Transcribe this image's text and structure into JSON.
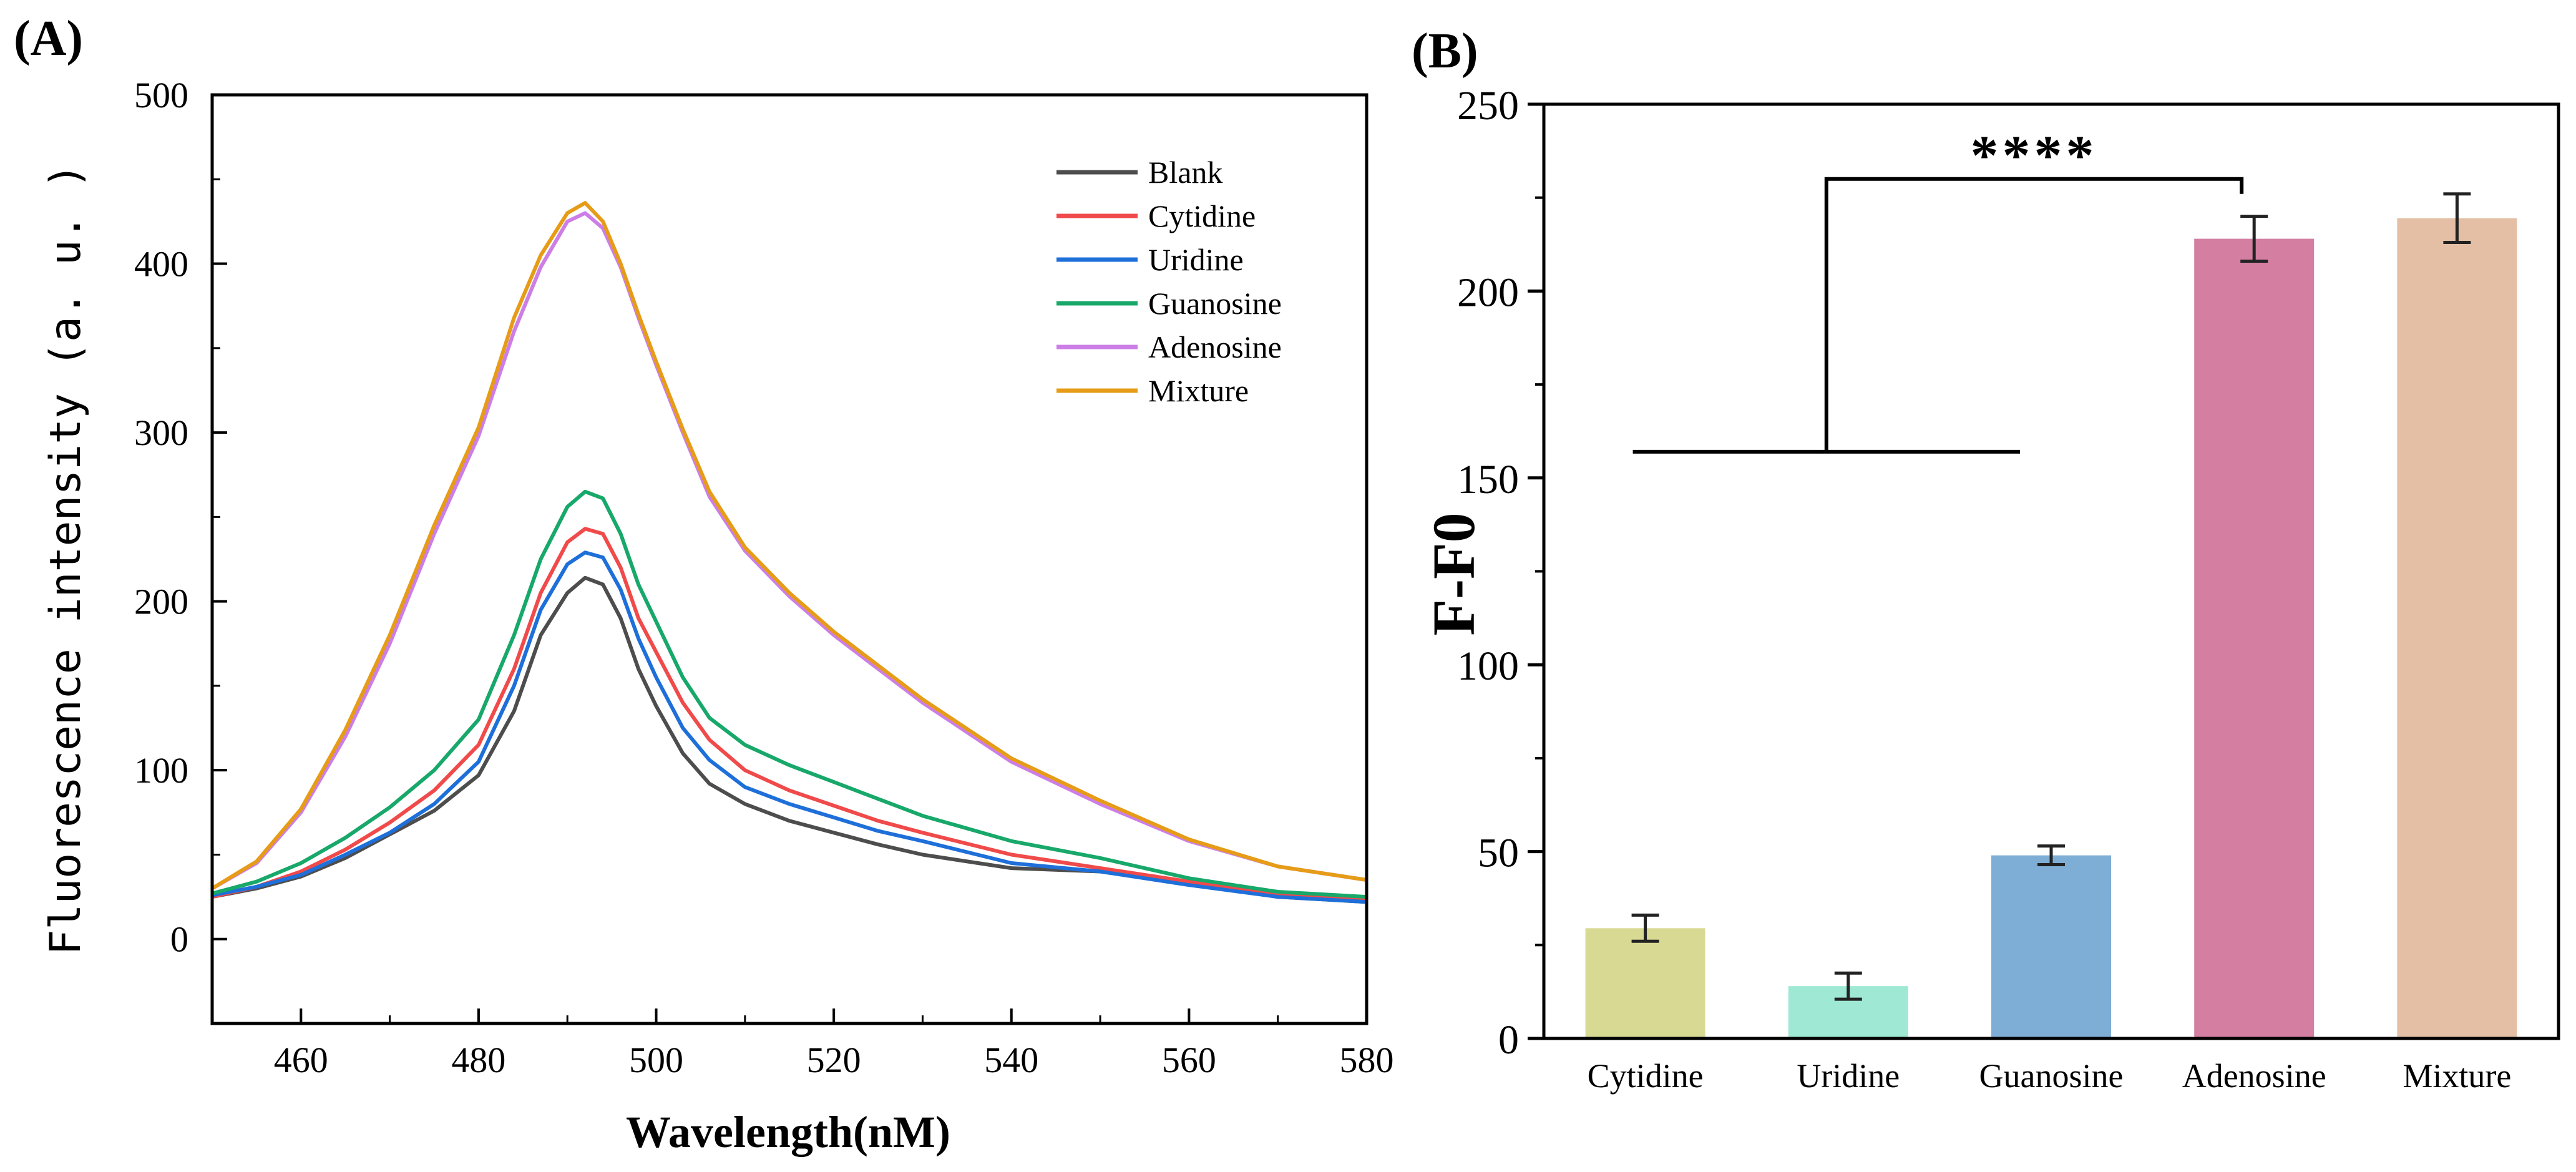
{
  "panels": {
    "a_label": "(A)",
    "b_label": "(B)"
  },
  "chart_data": [
    {
      "type": "line",
      "panel": "A",
      "title": "",
      "xlabel": "Wavelength(nM)",
      "ylabel": "Fluorescence intensity (a. u. )",
      "xlim": [
        450,
        580
      ],
      "ylim": [
        -50,
        500
      ],
      "xticks": [
        460,
        480,
        500,
        520,
        540,
        560,
        580
      ],
      "yticks": [
        0,
        100,
        200,
        300,
        400,
        500
      ],
      "grid": false,
      "legend_position": "top-right",
      "series": [
        {
          "name": "Blank",
          "color": "#4d4d4d",
          "x": [
            450,
            455,
            460,
            465,
            470,
            475,
            480,
            484,
            487,
            490,
            492,
            494,
            496,
            498,
            500,
            503,
            506,
            510,
            515,
            520,
            525,
            530,
            540,
            550,
            560,
            570,
            580
          ],
          "y": [
            25,
            30,
            37,
            48,
            62,
            76,
            97,
            135,
            180,
            205,
            214,
            210,
            190,
            160,
            138,
            110,
            92,
            80,
            70,
            63,
            56,
            50,
            42,
            40,
            33,
            25,
            22
          ]
        },
        {
          "name": "Cytidine",
          "color": "#f04a4a",
          "x": [
            450,
            455,
            460,
            465,
            470,
            475,
            480,
            484,
            487,
            490,
            492,
            494,
            496,
            498,
            500,
            503,
            506,
            510,
            515,
            520,
            525,
            530,
            540,
            550,
            560,
            570,
            580
          ],
          "y": [
            25,
            31,
            40,
            53,
            69,
            88,
            115,
            160,
            205,
            235,
            243,
            240,
            220,
            190,
            170,
            140,
            118,
            100,
            88,
            79,
            70,
            63,
            50,
            42,
            34,
            27,
            24
          ]
        },
        {
          "name": "Uridine",
          "color": "#1e6fd9",
          "x": [
            450,
            455,
            460,
            465,
            470,
            475,
            480,
            484,
            487,
            490,
            492,
            494,
            496,
            498,
            500,
            503,
            506,
            510,
            515,
            520,
            525,
            530,
            540,
            550,
            560,
            570,
            580
          ],
          "y": [
            26,
            31,
            38,
            50,
            63,
            80,
            105,
            150,
            195,
            222,
            229,
            226,
            207,
            178,
            155,
            125,
            106,
            90,
            80,
            72,
            64,
            58,
            45,
            40,
            32,
            25,
            22
          ]
        },
        {
          "name": "Guanosine",
          "color": "#17a86a",
          "x": [
            450,
            455,
            460,
            465,
            470,
            475,
            480,
            484,
            487,
            490,
            492,
            494,
            496,
            498,
            500,
            503,
            506,
            510,
            515,
            520,
            525,
            530,
            540,
            550,
            560,
            570,
            580
          ],
          "y": [
            27,
            34,
            45,
            60,
            78,
            100,
            130,
            180,
            225,
            256,
            265,
            261,
            240,
            210,
            188,
            155,
            131,
            115,
            103,
            93,
            83,
            73,
            58,
            48,
            36,
            28,
            25
          ]
        },
        {
          "name": "Adenosine",
          "color": "#cc7ee6",
          "x": [
            450,
            455,
            460,
            465,
            470,
            475,
            480,
            484,
            487,
            490,
            492,
            494,
            496,
            498,
            500,
            503,
            506,
            510,
            515,
            520,
            525,
            530,
            540,
            550,
            560,
            570,
            580
          ],
          "y": [
            30,
            45,
            75,
            120,
            175,
            240,
            298,
            360,
            398,
            425,
            430,
            421,
            398,
            368,
            340,
            300,
            262,
            230,
            203,
            180,
            160,
            140,
            105,
            80,
            58,
            43,
            35
          ]
        },
        {
          "name": "Mixture",
          "color": "#e69c17",
          "x": [
            450,
            455,
            460,
            465,
            470,
            475,
            480,
            484,
            487,
            490,
            492,
            494,
            496,
            498,
            500,
            503,
            506,
            510,
            515,
            520,
            525,
            530,
            540,
            550,
            560,
            570,
            580
          ],
          "y": [
            30,
            46,
            77,
            124,
            180,
            245,
            303,
            368,
            405,
            430,
            436,
            425,
            400,
            370,
            342,
            302,
            265,
            232,
            205,
            182,
            162,
            142,
            107,
            82,
            59,
            43,
            35
          ]
        }
      ]
    },
    {
      "type": "bar",
      "panel": "B",
      "title": "",
      "xlabel": "",
      "ylabel": "F-F0",
      "ylim": [
        0,
        250
      ],
      "yticks": [
        0,
        50,
        100,
        150,
        200,
        250
      ],
      "grid": false,
      "categories": [
        "Cytidine",
        "Uridine",
        "Guanosine",
        "Adenosine",
        "Mixture"
      ],
      "values": [
        29.5,
        14,
        49,
        214,
        219.5
      ],
      "errors": [
        3.5,
        3.5,
        2.5,
        6,
        6.5
      ],
      "colors": [
        "#d8d993",
        "#9ee8d4",
        "#7eaed6",
        "#d47ea2",
        "#e4bfa6"
      ],
      "annotation": {
        "text": "****",
        "group_line_y": 157,
        "bracket_top_y": 230,
        "bracket_target_y": 226
      }
    }
  ]
}
